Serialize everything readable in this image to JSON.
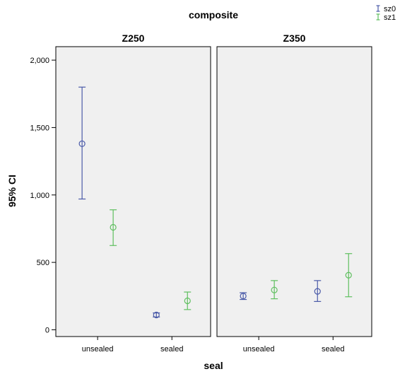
{
  "chart_data": {
    "type": "scatter",
    "title": "composite",
    "xlabel": "seal",
    "ylabel": "95% CI",
    "panels": [
      "Z250",
      "Z350"
    ],
    "categories": [
      "unsealed",
      "sealed"
    ],
    "ylim": [
      -50,
      2100
    ],
    "yticks": [
      0,
      500,
      1000,
      1500,
      2000
    ],
    "ytick_labels": [
      "0",
      "500",
      "1,000",
      "1,500",
      "2,000"
    ],
    "grid": false,
    "legend_position": "top-right",
    "colors": {
      "panel_bg": "#f0f0f0",
      "sz0": "#4a5aa8",
      "sz1": "#5fbf5f"
    },
    "series": [
      {
        "name": "sz0",
        "color": "#4a5aa8",
        "values": {
          "Z250": [
            {
              "category": "unsealed",
              "mean": 1380,
              "lower": 970,
              "upper": 1800
            },
            {
              "category": "sealed",
              "mean": 110,
              "lower": 95,
              "upper": 125
            }
          ],
          "Z350": [
            {
              "category": "unsealed",
              "mean": 250,
              "lower": 225,
              "upper": 275
            },
            {
              "category": "sealed",
              "mean": 285,
              "lower": 210,
              "upper": 365
            }
          ]
        }
      },
      {
        "name": "sz1",
        "color": "#5fbf5f",
        "values": {
          "Z250": [
            {
              "category": "unsealed",
              "mean": 760,
              "lower": 625,
              "upper": 890
            },
            {
              "category": "sealed",
              "mean": 215,
              "lower": 150,
              "upper": 280
            }
          ],
          "Z350": [
            {
              "category": "unsealed",
              "mean": 295,
              "lower": 230,
              "upper": 365
            },
            {
              "category": "sealed",
              "mean": 405,
              "lower": 245,
              "upper": 565
            }
          ]
        }
      }
    ]
  }
}
